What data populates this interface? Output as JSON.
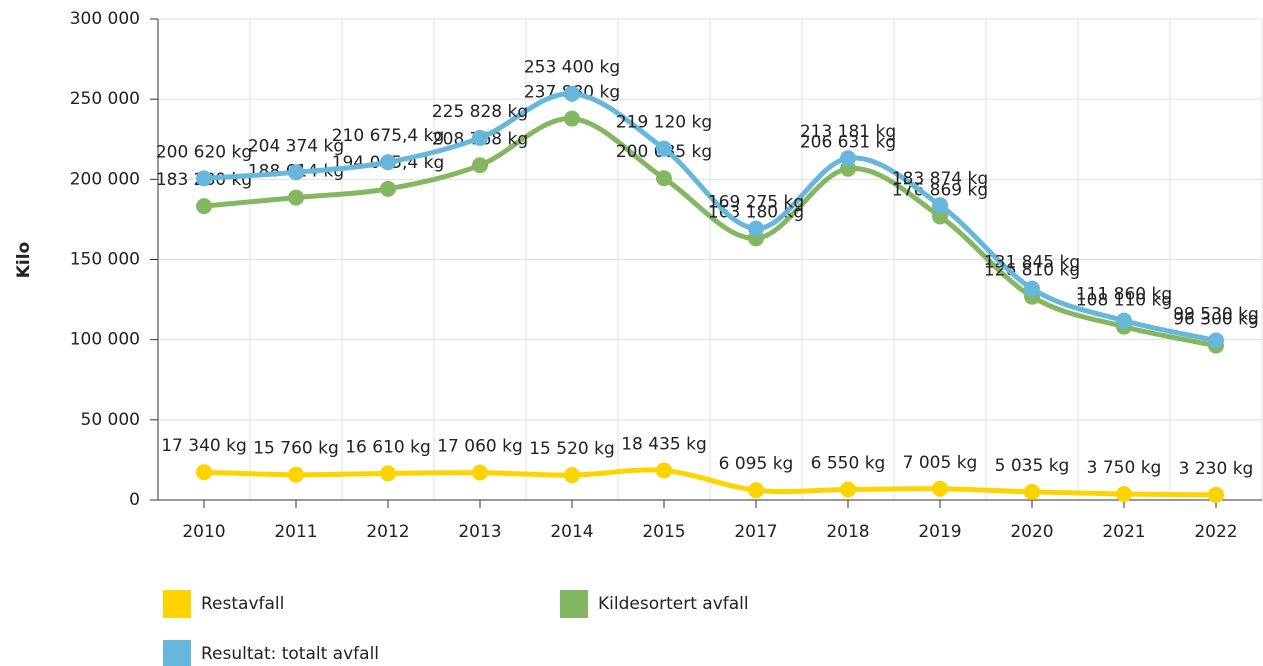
{
  "chart_data": {
    "type": "line",
    "y_label": "Kilo",
    "categories": [
      "2010",
      "2011",
      "2012",
      "2013",
      "2014",
      "2015",
      "2017",
      "2018",
      "2019",
      "2020",
      "2021",
      "2022"
    ],
    "series": [
      {
        "name": "Restavfall",
        "color": "#fdd400",
        "values": [
          17340,
          15760,
          16610,
          17060,
          15520,
          18435,
          6095,
          6550,
          7005,
          5035,
          3750,
          3230
        ],
        "value_labels": [
          "17 340 kg",
          "15 760 kg",
          "16 610 kg",
          "17 060 kg",
          "15 520 kg",
          "18 435 kg",
          "6 095 kg",
          "6 550 kg",
          "7 005 kg",
          "5 035 kg",
          "3 750 kg",
          "3 230 kg"
        ]
      },
      {
        "name": "Kildesortert avfall",
        "color": "#84b761",
        "values": [
          183280,
          188614,
          194065.4,
          208768,
          237880,
          200685,
          163180,
          206631,
          176869,
          126810,
          108110,
          96300
        ],
        "value_labels": [
          "183 280 kg",
          "188 614 kg",
          "194 065,4 kg",
          "208 768 kg",
          "237 880 kg",
          "200 685 kg",
          "163 180 kg",
          "206 631 kg",
          "176 869 kg",
          "126 810 kg",
          "108 110 kg",
          "96 300 kg"
        ]
      },
      {
        "name": "Resultat: totalt avfall",
        "color": "#67b7dc",
        "values": [
          200620,
          204374,
          210675.4,
          225828,
          253400,
          219120,
          169275,
          213181,
          183874,
          131845,
          111860,
          99530
        ],
        "value_labels": [
          "200 620 kg",
          "204 374 kg",
          "210 675,4 kg",
          "225 828 kg",
          "253 400 kg",
          "219 120 kg",
          "169 275 kg",
          "213 181 kg",
          "183 874 kg",
          "131 845 kg",
          "111 860 kg",
          "99 530 kg"
        ]
      }
    ],
    "ylim": [
      0,
      300000
    ],
    "yticks": [
      {
        "value": 0,
        "label": "0"
      },
      {
        "value": 50000,
        "label": "50 000"
      },
      {
        "value": 100000,
        "label": "100 000"
      },
      {
        "value": 150000,
        "label": "150 000"
      },
      {
        "value": 200000,
        "label": "200 000"
      },
      {
        "value": 250000,
        "label": "250 000"
      },
      {
        "value": 300000,
        "label": "300 000"
      }
    ],
    "grid": true,
    "legend": "bottom"
  }
}
